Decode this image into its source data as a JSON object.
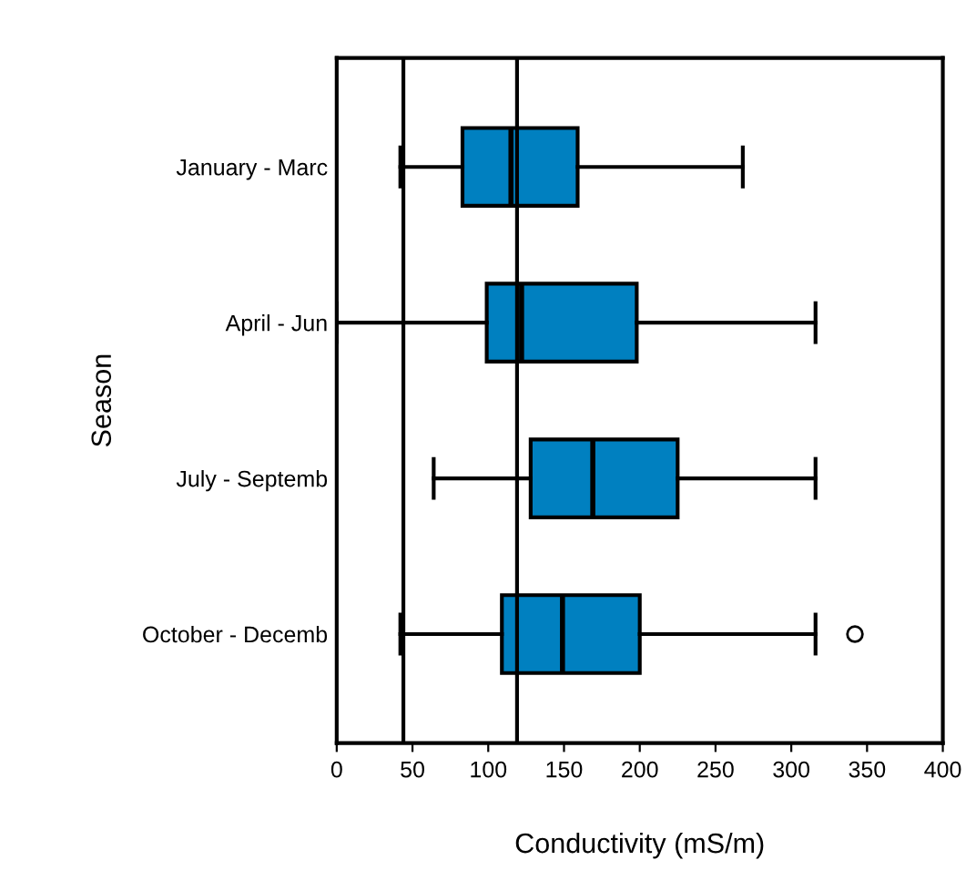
{
  "chart_data": {
    "type": "box",
    "orientation": "horizontal",
    "xlabel": "Conductivity (mS/m)",
    "ylabel": "Season",
    "categories": [
      "January - Marc",
      "April - Jun",
      "July - Septemb",
      "October - Decemb"
    ],
    "color": "#0080c0",
    "boxes": [
      {
        "low": 42,
        "q1": 83,
        "median": 115,
        "q3": 159,
        "high": 268
      },
      {
        "low": 0,
        "q1": 99,
        "median": 122,
        "q3": 198,
        "high": 316
      },
      {
        "low": 64,
        "q1": 128,
        "median": 169,
        "q3": 225,
        "high": 316
      },
      {
        "low": 42,
        "q1": 109,
        "median": 149,
        "q3": 200,
        "high": 316,
        "outliers": [
          342
        ]
      }
    ],
    "xlim": [
      0,
      400
    ],
    "xticks": [
      0,
      50,
      100,
      150,
      200,
      250,
      300,
      350,
      400
    ],
    "ref_lines": [
      {
        "axis": "x",
        "value": 44
      },
      {
        "axis": "x",
        "value": 119
      }
    ],
    "grid": false,
    "legend": false
  }
}
